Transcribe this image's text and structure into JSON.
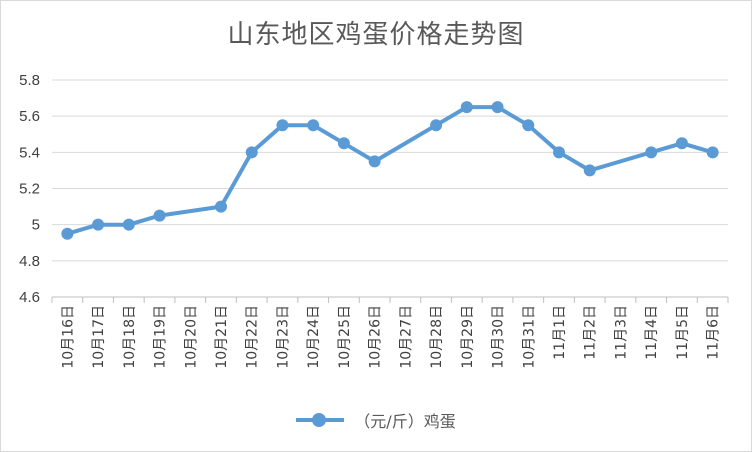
{
  "chart_data": {
    "type": "line",
    "title": "山东地区鸡蛋价格走势图",
    "categories": [
      "10月16日",
      "10月17日",
      "10月18日",
      "10月19日",
      "10月20日",
      "10月21日",
      "10月22日",
      "10月23日",
      "10月24日",
      "10月25日",
      "10月26日",
      "10月27日",
      "10月28日",
      "10月29日",
      "10月30日",
      "10月31日",
      "11月1日",
      "11月2日",
      "11月3日",
      "11月4日",
      "11月5日",
      "11月6日"
    ],
    "series": [
      {
        "name": "（元/斤）鸡蛋",
        "color": "#5b9bd5",
        "values": [
          4.95,
          5.0,
          5.0,
          5.05,
          null,
          5.1,
          5.4,
          5.55,
          5.55,
          5.45,
          5.35,
          null,
          5.55,
          5.65,
          5.65,
          5.55,
          5.4,
          5.3,
          null,
          5.4,
          5.45,
          5.4
        ]
      }
    ],
    "y_ticks": [
      "4.6",
      "4.8",
      "5",
      "5.2",
      "5.4",
      "5.6",
      "5.8"
    ],
    "ylim": [
      4.6,
      5.8
    ],
    "grid": true,
    "legend_position": "bottom"
  }
}
